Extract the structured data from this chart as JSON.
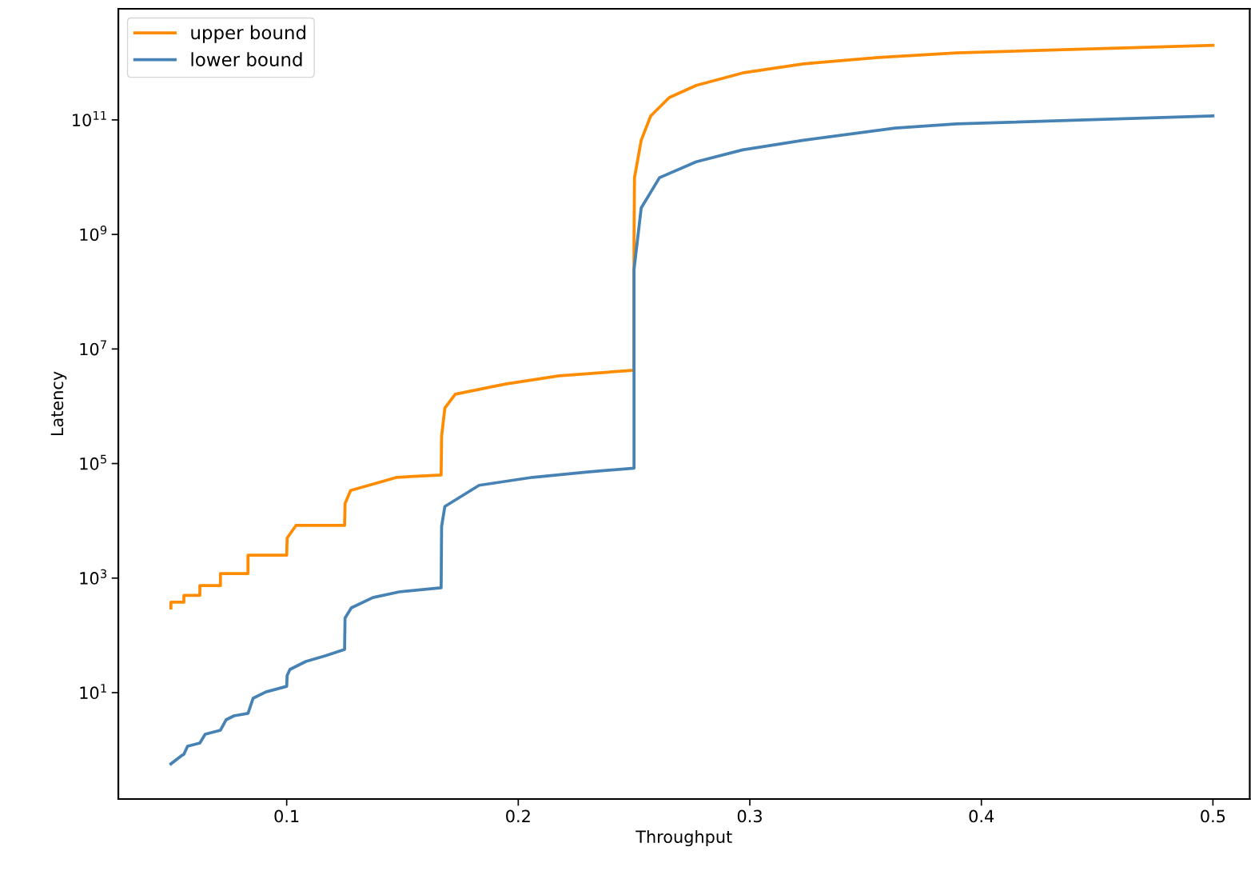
{
  "chart_data": {
    "type": "line",
    "xlabel": "Throughput",
    "ylabel": "Latency",
    "log": "y",
    "grid": false,
    "legend": "top left",
    "marker": "none",
    "line_style": "solid",
    "xlim": [
      0.0273,
      0.5159
    ],
    "xticks": [
      0.1,
      0.2,
      0.3,
      0.4,
      0.5
    ],
    "ylim": [
      0.139,
      8700000000000.0
    ],
    "yticks": [
      {
        "value": 10,
        "label": "10$^{1}$"
      },
      {
        "value": 1000,
        "label": "10$^{3}$"
      },
      {
        "value": 100000,
        "label": "10$^{5}$"
      },
      {
        "value": 10000000,
        "label": "10$^{7}$"
      },
      {
        "value": 1000000000,
        "label": "10$^{9}$"
      },
      {
        "value": 100000000000,
        "label": "10$^{11}$"
      }
    ],
    "series": [
      {
        "name": "upper bound",
        "color": "#ff8c00",
        "x": [
          0.05,
          0.05,
          0.0556,
          0.0556,
          0.0625,
          0.0625,
          0.0714,
          0.0714,
          0.0833,
          0.0833,
          0.1,
          0.1002,
          0.104,
          0.125,
          0.1252,
          0.1276,
          0.1476,
          0.1667,
          0.1669,
          0.1683,
          0.1728,
          0.1945,
          0.2176,
          0.25,
          0.25,
          0.2502,
          0.2531,
          0.2572,
          0.2652,
          0.2769,
          0.2969,
          0.3231,
          0.3555,
          0.3893,
          0.5
        ],
        "values": [
          302,
          380,
          380,
          500,
          500,
          741,
          741,
          1200,
          1200,
          2510,
          2510,
          5000,
          8300,
          8300,
          20000,
          33900,
          57500,
          63100,
          300000,
          930000,
          1620000,
          2450000,
          3390000,
          4270000,
          850000000,
          9800000000,
          44000000000,
          117000000000,
          245000000000,
          400000000000,
          660000000000,
          950000000000,
          1230000000000,
          1480000000000,
          2000000000000
        ]
      },
      {
        "name": "lower bound",
        "color": "#4682b4",
        "x": [
          0.05,
          0.0545,
          0.0556,
          0.0572,
          0.0625,
          0.0648,
          0.0714,
          0.0738,
          0.0772,
          0.0833,
          0.0855,
          0.091,
          0.1,
          0.1002,
          0.1014,
          0.1083,
          0.1166,
          0.125,
          0.1252,
          0.1279,
          0.1372,
          0.1486,
          0.1667,
          0.1669,
          0.1683,
          0.1831,
          0.2062,
          0.229,
          0.25,
          0.25,
          0.2531,
          0.261,
          0.2769,
          0.2969,
          0.3231,
          0.3628,
          0.3893,
          0.5
        ],
        "values": [
          0.57,
          0.79,
          0.84,
          1.16,
          1.32,
          1.88,
          2.21,
          3.35,
          3.94,
          4.34,
          7.98,
          10.3,
          12.9,
          20,
          25.4,
          35.1,
          43.9,
          56.8,
          200,
          302,
          457,
          575,
          676,
          8000,
          17800,
          41700,
          57500,
          70800,
          83200,
          245000000,
          2900000000,
          9800000000,
          18600000000,
          30000000000,
          44000000000,
          72000000000,
          85000000000,
          117000000000
        ]
      }
    ]
  }
}
